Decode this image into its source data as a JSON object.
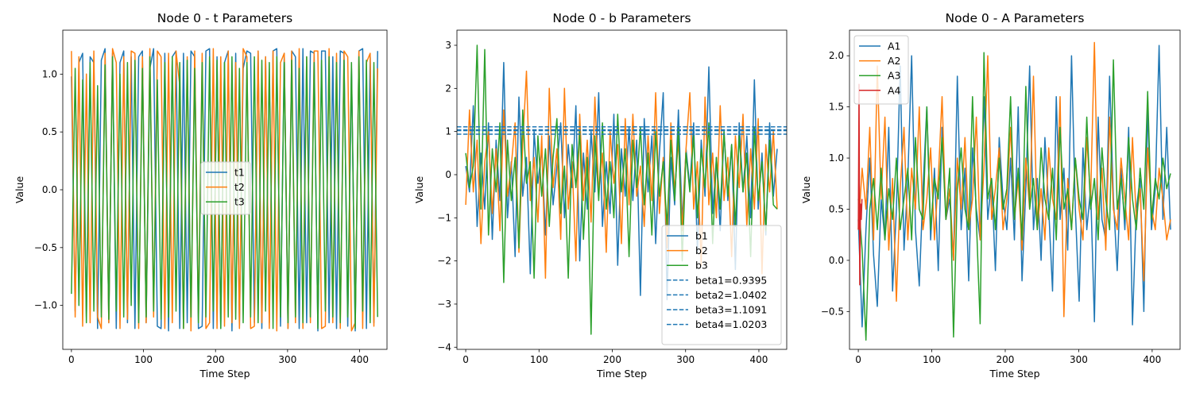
{
  "chart_data": [
    {
      "type": "line",
      "title": "Node 0 - t Parameters",
      "xlabel": "Time Step",
      "ylabel": "Value",
      "xlim": [
        -12,
        438
      ],
      "ylim": [
        -1.38,
        1.38
      ],
      "xticks": [
        0,
        100,
        200,
        300,
        400
      ],
      "yticks": [
        -1.0,
        -0.5,
        0.0,
        0.5,
        1.0
      ],
      "ytick_labels": [
        "−1.0",
        "−0.5",
        "0.0",
        "0.5",
        "1.0"
      ],
      "legend_position": "center-right",
      "series": [
        {
          "name": "t1",
          "color": "#1f77b4",
          "style": "solid",
          "values": [
            0.98,
            -1.05,
            1.1,
            1.18,
            -1.1,
            1.15,
            1.1,
            -1.2,
            1.12,
            1.22,
            -1.15,
            1.18,
            -1.2,
            1.1,
            1.2,
            -1.15,
            1.15,
            -1.2,
            1.15,
            1.2,
            -1.15,
            1.05,
            1.22,
            -1.18,
            -1.2,
            1.18,
            -1.22,
            1.15,
            1.2,
            -1.2,
            1.18,
            -1.15,
            1.2,
            1.15,
            -1.2,
            -1.18,
            1.2,
            1.22,
            -1.2,
            1.15,
            -1.2,
            1.1,
            1.2,
            -1.22,
            1.18,
            -1.18,
            1.05,
            1.2,
            1.18,
            -1.15,
            1.2,
            -1.2,
            1.15,
            -1.15,
            1.2,
            1.22,
            -1.18,
            1.18,
            -1.2,
            1.2,
            1.15,
            -1.2,
            1.22,
            -1.15,
            1.2,
            1.18,
            -1.22,
            1.2,
            1.2,
            -1.15,
            1.15,
            -1.2,
            1.2,
            1.18,
            -1.18,
            1.05,
            -1.22,
            1.2,
            1.22,
            -1.2,
            1.15,
            -1.15,
            1.2
          ]
        },
        {
          "name": "t2",
          "color": "#ff7f0e",
          "style": "solid",
          "values": [
            1.2,
            -1.1,
            1.15,
            -1.18,
            1.0,
            -1.15,
            1.2,
            -1.1,
            -1.2,
            1.18,
            -1.15,
            1.22,
            1.1,
            -1.2,
            1.15,
            -1.12,
            1.2,
            1.18,
            -1.2,
            1.15,
            -1.15,
            1.22,
            -1.1,
            1.2,
            1.15,
            -1.2,
            1.18,
            -1.15,
            1.2,
            0.9,
            -1.2,
            1.15,
            -1.22,
            1.2,
            -1.1,
            1.18,
            -1.2,
            -1.15,
            1.22,
            -1.2,
            1.15,
            -1.18,
            1.2,
            -1.15,
            1.1,
            -1.2,
            1.22,
            1.15,
            -1.2,
            -1.18,
            1.2,
            -1.15,
            1.15,
            -1.2,
            1.2,
            -1.22,
            1.1,
            1.18,
            -1.2,
            1.2,
            -1.15,
            1.22,
            -1.2,
            1.15,
            -1.15,
            1.2,
            1.2,
            -1.2,
            -1.18,
            1.22,
            -1.15,
            1.18,
            -1.2,
            1.2,
            1.15,
            -1.22,
            -1.15,
            1.2,
            -1.2,
            1.1,
            1.18,
            -1.18,
            1.05
          ]
        },
        {
          "name": "t3",
          "color": "#2ca02c",
          "style": "solid",
          "values": [
            -0.9,
            1.05,
            -1.0,
            0.95,
            -1.15,
            1.1,
            -1.05,
            0.9,
            -1.1,
            1.08,
            -1.12,
            1.15,
            -1.05,
            1.0,
            -1.1,
            1.1,
            -1.0,
            1.12,
            -1.15,
            1.05,
            -1.1,
            1.15,
            -1.05,
            0.95,
            -1.12,
            1.1,
            -1.1,
            1.15,
            -1.05,
            1.1,
            -1.2,
            1.12,
            -1.1,
            1.05,
            -1.15,
            1.1,
            -1.1,
            1.15,
            -1.05,
            1.12,
            -1.2,
            1.1,
            -1.1,
            1.15,
            -1.12,
            1.05,
            -1.15,
            1.1,
            -1.1,
            1.15,
            -1.15,
            1.12,
            -1.05,
            1.1,
            -1.2,
            1.15,
            -1.1,
            1.1,
            -1.15,
            1.12,
            -1.1,
            1.05,
            -1.15,
            1.15,
            -1.1,
            1.1,
            -1.2,
            1.12,
            -1.05,
            1.15,
            -1.1,
            1.1,
            -1.15,
            1.12,
            -1.1,
            1.1,
            -1.2,
            1.15,
            -1.05,
            1.12,
            -1.15,
            1.1,
            -1.1
          ]
        }
      ]
    },
    {
      "type": "line",
      "title": "Node 0 - b Parameters",
      "xlabel": "Time Step",
      "ylabel": "Value",
      "xlim": [
        -12,
        438
      ],
      "ylim": [
        -4.05,
        3.35
      ],
      "xticks": [
        0,
        100,
        200,
        300,
        400
      ],
      "yticks": [
        -4,
        -3,
        -2,
        -1,
        0,
        1,
        2,
        3
      ],
      "ytick_labels": [
        "−4",
        "−3",
        "−2",
        "−1",
        "0",
        "1",
        "2",
        "3"
      ],
      "legend_position": "lower-right",
      "series": [
        {
          "name": "b1",
          "color": "#1f77b4",
          "style": "solid",
          "values": [
            0.2,
            -0.4,
            1.6,
            -1.2,
            0.5,
            -0.8,
            1.2,
            -1.5,
            0.8,
            -0.6,
            2.6,
            -1.0,
            0.3,
            -1.9,
            1.8,
            -0.5,
            0.4,
            -2.3,
            1.0,
            -0.2,
            0.6,
            -1.4,
            0.9,
            -0.7,
            0.2,
            1.2,
            -1.0,
            0.7,
            -0.3,
            1.6,
            -2.0,
            0.5,
            -0.8,
            1.0,
            -0.4,
            1.9,
            -1.2,
            0.3,
            -0.9,
            1.4,
            -2.1,
            0.6,
            -0.5,
            1.1,
            -0.6,
            0.8,
            -2.8,
            1.3,
            -0.4,
            0.9,
            -1.6,
            0.5,
            1.9,
            -2.9,
            0.4,
            -0.7,
            1.5,
            -1.1,
            0.6,
            -0.3,
            1.2,
            -1.8,
            0.8,
            -0.5,
            2.5,
            -0.9,
            0.4,
            -1.3,
            1.0,
            -0.6,
            0.7,
            -2.2,
            1.2,
            -0.4,
            0.9,
            -1.0,
            2.2,
            -0.8,
            0.5,
            -1.4,
            1.2,
            -0.5,
            0.6
          ]
        },
        {
          "name": "b2",
          "color": "#ff7f0e",
          "style": "solid",
          "values": [
            -0.7,
            1.5,
            -0.4,
            0.8,
            -1.6,
            0.3,
            1.0,
            -0.9,
            0.6,
            -1.3,
            1.5,
            -0.5,
            0.2,
            1.2,
            -1.8,
            0.7,
            2.4,
            -0.6,
            0.4,
            -1.1,
            0.9,
            -2.4,
            2.0,
            -0.3,
            0.6,
            -1.5,
            2.0,
            -0.8,
            0.3,
            -2.0,
            1.4,
            -0.6,
            0.8,
            -1.1,
            1.8,
            -0.4,
            0.5,
            -1.8,
            1.0,
            -0.2,
            0.7,
            -1.6,
            1.3,
            -0.7,
            1.4,
            -0.5,
            0.2,
            -1.2,
            0.9,
            -0.6,
            1.9,
            -0.9,
            0.4,
            -1.7,
            1.2,
            -0.4,
            0.8,
            -1.3,
            0.6,
            1.9,
            -0.8,
            0.3,
            -2.1,
            1.8,
            -0.7,
            0.5,
            -1.0,
            1.6,
            -0.6,
            0.4,
            -1.9,
            0.9,
            -0.3,
            1.4,
            -1.2,
            0.6,
            -0.8,
            1.3,
            -2.3,
            0.7,
            -0.4,
            1.0,
            -0.8
          ]
        },
        {
          "name": "b3",
          "color": "#2ca02c",
          "style": "solid",
          "values": [
            0.5,
            -0.3,
            0.2,
            3.0,
            -0.8,
            2.9,
            -1.4,
            0.6,
            -0.4,
            1.2,
            -2.5,
            0.8,
            -0.6,
            0.4,
            -1.7,
            1.5,
            -0.2,
            0.3,
            -2.4,
            0.9,
            -0.5,
            0.6,
            -1.2,
            0.4,
            1.3,
            -0.9,
            0.2,
            -2.4,
            0.7,
            -0.3,
            1.0,
            -1.5,
            0.4,
            -3.7,
            0.9,
            -0.6,
            1.2,
            -0.8,
            0.3,
            -1.0,
            1.4,
            -0.4,
            0.6,
            -1.9,
            0.8,
            -0.3,
            1.1,
            -0.7,
            0.5,
            -1.4,
            1.0,
            -0.5,
            0.3,
            -1.2,
            0.8,
            -0.6,
            1.1,
            -2.0,
            0.5,
            -0.4,
            0.9,
            -1.0,
            0.6,
            -0.3,
            1.2,
            -1.6,
            0.4,
            -0.8,
            1.0,
            -0.5,
            0.7,
            -1.2,
            0.9,
            -0.4,
            0.5,
            -1.9,
            1.1,
            -0.6,
            0.3,
            -1.3,
            0.8,
            -0.7,
            -0.8
          ]
        }
      ],
      "hlines": [
        {
          "name": "beta1=0.9395",
          "value": 0.9395,
          "color": "#1f77b4",
          "style": "dashed"
        },
        {
          "name": "beta2=1.0402",
          "value": 1.0402,
          "color": "#1f77b4",
          "style": "dashed"
        },
        {
          "name": "beta3=1.1091",
          "value": 1.1091,
          "color": "#1f77b4",
          "style": "dashed"
        },
        {
          "name": "beta4=1.0203",
          "value": 1.0203,
          "color": "#1f77b4",
          "style": "dashed"
        }
      ]
    },
    {
      "type": "line",
      "title": "Node 0 - A Parameters",
      "xlabel": "Time Step",
      "ylabel": "Value",
      "xlim": [
        -12,
        438
      ],
      "ylim": [
        -0.87,
        2.25
      ],
      "xticks": [
        0,
        100,
        200,
        300,
        400
      ],
      "yticks": [
        -0.5,
        0.0,
        0.5,
        1.0,
        1.5,
        2.0
      ],
      "ytick_labels": [
        "−0.5",
        "0.0",
        "0.5",
        "1.0",
        "1.5",
        "2.0"
      ],
      "legend_position": "top-left",
      "series": [
        {
          "name": "A1",
          "color": "#1f77b4",
          "style": "solid",
          "values": [
            0.4,
            -0.65,
            0.3,
            1.0,
            0.05,
            -0.45,
            0.6,
            0.2,
            1.3,
            -0.3,
            0.5,
            1.9,
            0.1,
            0.8,
            2.0,
            0.3,
            -0.25,
            0.7,
            1.5,
            0.2,
            0.9,
            -0.1,
            1.3,
            0.4,
            0.6,
            0.0,
            1.8,
            0.3,
            0.9,
            -0.2,
            1.1,
            0.5,
            0.2,
            1.6,
            0.4,
            0.8,
            -0.1,
            1.2,
            0.6,
            0.3,
            1.0,
            0.2,
            1.5,
            -0.2,
            0.7,
            1.9,
            0.3,
            0.8,
            0.0,
            1.2,
            0.5,
            -0.3,
            1.6,
            0.4,
            0.9,
            0.1,
            2.0,
            0.5,
            -0.4,
            1.1,
            0.3,
            0.7,
            -0.6,
            1.4,
            0.4,
            0.2,
            1.8,
            0.6,
            -0.1,
            0.9,
            0.3,
            1.3,
            -0.63,
            0.5,
            0.8,
            -0.5,
            1.5,
            0.3,
            0.7,
            2.1,
            0.4,
            1.3,
            0.3
          ]
        },
        {
          "name": "A2",
          "color": "#ff7f0e",
          "style": "solid",
          "values": [
            0.3,
            0.9,
            0.5,
            1.3,
            0.2,
            1.9,
            0.6,
            1.4,
            0.1,
            0.8,
            -0.4,
            0.7,
            1.3,
            0.2,
            0.9,
            0.5,
            1.5,
            0.3,
            0.6,
            1.1,
            0.2,
            0.8,
            1.6,
            0.4,
            0.7,
            0.0,
            1.0,
            0.5,
            1.2,
            0.3,
            0.6,
            1.4,
            0.2,
            0.9,
            2.0,
            0.4,
            0.7,
            1.1,
            0.3,
            0.6,
            1.3,
            0.4,
            0.8,
            0.1,
            1.0,
            0.5,
            1.8,
            0.3,
            0.7,
            0.2,
            1.1,
            0.6,
            0.4,
            1.6,
            -0.55,
            0.8,
            0.3,
            1.0,
            0.5,
            0.2,
            1.2,
            0.6,
            2.13,
            0.4,
            0.9,
            0.1,
            1.4,
            0.5,
            0.3,
            1.0,
            0.6,
            0.2,
            1.2,
            0.4,
            0.7,
            -0.2,
            1.1,
            0.5,
            0.3,
            0.9,
            0.6,
            0.2,
            0.4
          ]
        },
        {
          "name": "A3",
          "color": "#2ca02c",
          "style": "solid",
          "values": [
            0.6,
            0.1,
            -0.78,
            0.5,
            0.8,
            0.3,
            0.9,
            0.2,
            0.7,
            0.4,
            1.0,
            0.3,
            0.6,
            0.9,
            0.2,
            1.2,
            0.5,
            0.4,
            1.5,
            0.3,
            0.8,
            0.6,
            1.2,
            0.4,
            0.9,
            -0.75,
            0.7,
            1.1,
            0.5,
            0.3,
            1.6,
            0.4,
            -0.62,
            2.03,
            0.6,
            0.8,
            0.3,
            1.0,
            0.5,
            0.7,
            1.6,
            0.4,
            0.9,
            0.2,
            1.7,
            0.5,
            0.8,
            0.3,
            1.1,
            0.6,
            0.4,
            0.9,
            0.2,
            1.3,
            0.5,
            0.7,
            0.3,
            1.0,
            0.6,
            0.4,
            1.4,
            0.5,
            0.8,
            0.2,
            1.1,
            0.6,
            0.3,
            1.96,
            0.5,
            0.8,
            0.4,
            1.2,
            0.6,
            0.3,
            0.9,
            0.5,
            1.65,
            0.4,
            0.8,
            0.6,
            1.0,
            0.7,
            0.85
          ]
        },
        {
          "name": "A4",
          "color": "#d62728",
          "style": "solid",
          "x": [
            0,
            1,
            2,
            3,
            4,
            5
          ],
          "values": [
            0.3,
            1.72,
            -0.24,
            0.55,
            0.4,
            0.6
          ]
        }
      ]
    }
  ]
}
